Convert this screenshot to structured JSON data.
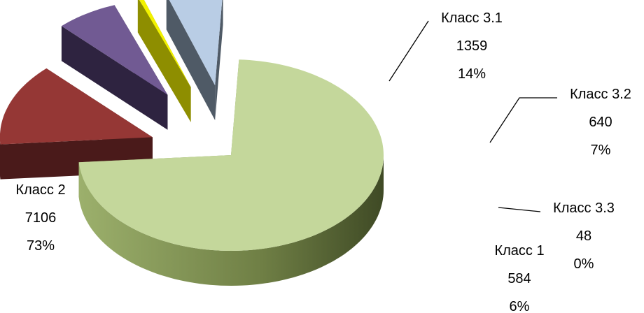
{
  "chart_data": {
    "type": "pie",
    "style": "3d-exploded",
    "slices": [
      {
        "name": "Класс 2",
        "value": 7106,
        "percent": "73%",
        "color": "#C4D79B",
        "dark": "#7E9458"
      },
      {
        "name": "Класс 3.1",
        "value": 1359,
        "percent": "14%",
        "color": "#953735",
        "dark": "#4A1A1A"
      },
      {
        "name": "Класс 3.2",
        "value": 640,
        "percent": "7%",
        "color": "#715A93",
        "dark": "#2E2340"
      },
      {
        "name": "Класс 3.3",
        "value": 48,
        "percent": "0%",
        "color": "#F2F200",
        "dark": "#8E8E00"
      },
      {
        "name": "Класс 1",
        "value": 584,
        "percent": "6%",
        "color": "#B9CDE5",
        "dark": "#4F5A66"
      }
    ]
  }
}
